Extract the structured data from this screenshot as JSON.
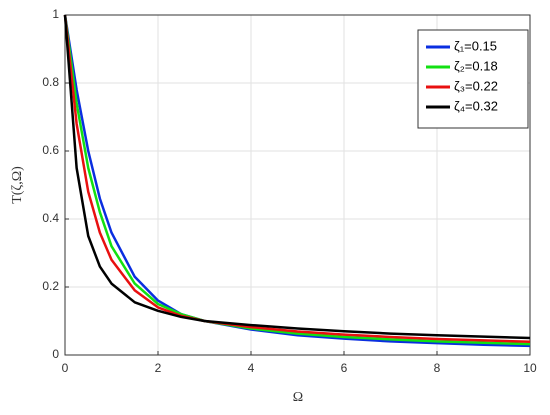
{
  "chart_data": {
    "type": "line",
    "x_label": "Ω",
    "y_label": "T(ζ,Ω)",
    "x": [
      0,
      0.25,
      0.5,
      0.75,
      1,
      1.5,
      2,
      2.5,
      3,
      4,
      5,
      6,
      7,
      8,
      9,
      10
    ],
    "series": [
      {
        "name": "ζ₁=0.15",
        "color": "#0a2ee0",
        "values": [
          1,
          0.78,
          0.6,
          0.46,
          0.36,
          0.23,
          0.16,
          0.12,
          0.1,
          0.075,
          0.058,
          0.048,
          0.04,
          0.035,
          0.03,
          0.027
        ]
      },
      {
        "name": "ζ₂=0.18",
        "color": "#12e012",
        "values": [
          1,
          0.74,
          0.55,
          0.42,
          0.32,
          0.21,
          0.15,
          0.12,
          0.1,
          0.078,
          0.063,
          0.053,
          0.046,
          0.04,
          0.036,
          0.032
        ]
      },
      {
        "name": "ζ₃=0.22",
        "color": "#e81010",
        "values": [
          1,
          0.68,
          0.48,
          0.36,
          0.28,
          0.19,
          0.14,
          0.115,
          0.1,
          0.082,
          0.069,
          0.06,
          0.053,
          0.047,
          0.043,
          0.039
        ]
      },
      {
        "name": "ζ₄=0.32",
        "color": "#000000",
        "values": [
          1,
          0.55,
          0.35,
          0.26,
          0.21,
          0.155,
          0.13,
          0.112,
          0.1,
          0.088,
          0.078,
          0.07,
          0.063,
          0.058,
          0.054,
          0.05
        ]
      }
    ],
    "xlim": [
      0,
      10
    ],
    "xticks": [
      0,
      2,
      4,
      6,
      8,
      10
    ],
    "ylim": [
      0,
      1
    ],
    "yticks": [
      0,
      0.2,
      0.4,
      0.6,
      0.8,
      1
    ],
    "grid": true,
    "legend": "upper right"
  }
}
